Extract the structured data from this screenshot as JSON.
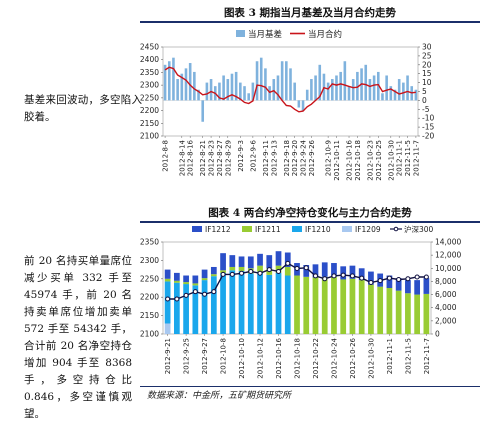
{
  "captions": {
    "fig3": "图表 3 期指当月基差及当月合约走势",
    "fig4": "图表 4 两合约净空持仓变化与主力合约走势"
  },
  "notes": {
    "top": "基差来回波动，多空陷入胶着。",
    "bottom": "前 20 名持买单量席位减少买单 332 手至 45974 手，前 20 名持卖单席位增加卖单 572 手至 54342 手，合计前 20 名净空持仓增加 904 手至 8368 手，多空持仓比 0.846，多空谨慎观望。"
  },
  "source": "数据来源：中金所，五矿期货研究所",
  "colors": {
    "bar_blue_light": "#7fb2dd",
    "line_red": "#c9141a",
    "if1212": "#2b4fc8",
    "if1211": "#99cc33",
    "if1210": "#1aa7ec",
    "if1209": "#a8c8f0",
    "hs300_line": "#101040",
    "rule": "#1b2f6a"
  },
  "chart_data": [
    {
      "type": "bar+line",
      "legend": [
        "当月基差",
        "当月合约"
      ],
      "x": [
        "2012-8-8",
        "2012-8-9",
        "2012-8-10",
        "2012-8-13",
        "2012-8-14",
        "2012-8-15",
        "2012-8-16",
        "2012-8-17",
        "2012-8-20",
        "2012-8-21",
        "2012-8-22",
        "2012-8-23",
        "2012-8-24",
        "2012-8-27",
        "2012-8-28",
        "2012-8-29",
        "2012-8-30",
        "2012-8-31",
        "2012-9-3",
        "2012-9-4",
        "2012-9-5",
        "2012-9-6",
        "2012-9-7",
        "2012-9-10",
        "2012-9-11",
        "2012-9-12",
        "2012-9-13",
        "2012-9-14",
        "2012-9-17",
        "2012-9-18",
        "2012-9-19",
        "2012-9-20",
        "2012-9-21",
        "2012-9-24",
        "2012-9-25",
        "2012-9-26",
        "2012-9-27",
        "2012-9-28",
        "2012-10-8",
        "2012-10-9",
        "2012-10-10",
        "2012-10-11",
        "2012-10-12",
        "2012-10-15",
        "2012-10-16",
        "2012-10-17",
        "2012-10-18",
        "2012-10-19",
        "2012-10-22",
        "2012-10-23",
        "2012-10-24",
        "2012-10-25",
        "2012-10-26",
        "2012-10-29",
        "2012-10-30",
        "2012-10-31",
        "2012-11-1",
        "2012-11-2",
        "2012-11-5",
        "2012-11-6",
        "2012-11-7"
      ],
      "x_tick_labels": [
        "2012-8-8",
        "2012-8-14",
        "2012-8-16",
        "2012-8-21",
        "2012-8-23",
        "2012-8-27",
        "2012-8-29",
        "2012-9-3",
        "2012-9-6",
        "2012-9-11",
        "2012-9-13",
        "2012-9-18",
        "2012-9-20",
        "2012-9-24",
        "2012-9-26",
        "2012-10-9",
        "2012-10-11",
        "2012-10-16",
        "2012-10-18",
        "2012-10-23",
        "2012-10-25",
        "2012-10-30",
        "2012-11-1",
        "2012-11-5",
        "2012-11-7"
      ],
      "series": [
        {
          "name": "当月基差",
          "axis": "right",
          "kind": "bar",
          "values": [
            20,
            22,
            24,
            12,
            15,
            18,
            21,
            16,
            6,
            -12,
            10,
            12,
            8,
            10,
            14,
            12,
            15,
            16,
            10,
            8,
            4,
            10,
            22,
            24,
            18,
            8,
            12,
            14,
            22,
            22,
            18,
            10,
            -4,
            -6,
            6,
            12,
            14,
            20,
            15,
            10,
            12,
            14,
            16,
            22,
            8,
            12,
            16,
            18,
            20,
            12,
            14,
            16,
            4,
            14,
            8,
            6,
            12,
            10,
            14,
            8,
            6
          ]
        },
        {
          "name": "当月合约",
          "axis": "left",
          "kind": "line",
          "values": [
            2360,
            2370,
            2365,
            2340,
            2330,
            2320,
            2300,
            2285,
            2275,
            2262,
            2265,
            2275,
            2268,
            2250,
            2245,
            2255,
            2262,
            2255,
            2245,
            2232,
            2228,
            2238,
            2300,
            2298,
            2292,
            2272,
            2278,
            2262,
            2240,
            2220,
            2218,
            2205,
            2195,
            2198,
            2215,
            2225,
            2240,
            2255,
            2290,
            2285,
            2305,
            2300,
            2305,
            2300,
            2295,
            2290,
            2292,
            2305,
            2302,
            2295,
            2300,
            2302,
            2275,
            2280,
            2285,
            2275,
            2265,
            2270,
            2275,
            2270,
            2272
          ]
        }
      ],
      "ylim_left": [
        2100,
        2450
      ],
      "yticks_left": [
        2100,
        2150,
        2200,
        2250,
        2300,
        2350,
        2400,
        2450
      ],
      "ylim_right": [
        -20,
        30
      ],
      "yticks_right": [
        -20,
        -15,
        -10,
        -5,
        0,
        5,
        10,
        15,
        20,
        25,
        30
      ]
    },
    {
      "type": "stacked-bar+line",
      "legend": [
        "IF1212",
        "IF1211",
        "IF1210",
        "IF1209",
        "沪深300"
      ],
      "x": [
        "2012-9-21",
        "2012-9-24",
        "2012-9-25",
        "2012-9-26",
        "2012-9-27",
        "2012-9-28",
        "2012-10-8",
        "2012-10-9",
        "2012-10-10",
        "2012-10-11",
        "2012-10-12",
        "2012-10-15",
        "2012-10-16",
        "2012-10-17",
        "2012-10-18",
        "2012-10-19",
        "2012-10-22",
        "2012-10-23",
        "2012-10-24",
        "2012-10-25",
        "2012-10-26",
        "2012-10-29",
        "2012-10-30",
        "2012-10-31",
        "2012-11-1",
        "2012-11-2",
        "2012-11-5",
        "2012-11-6",
        "2012-11-7"
      ],
      "x_tick_labels": [
        "2012-9-21",
        "2012-9-25",
        "2012-9-27",
        "2012-10-8",
        "2012-10-10",
        "2012-10-12",
        "2012-10-16",
        "2012-10-18",
        "2012-10-22",
        "2012-10-24",
        "2012-10-26",
        "2012-10-30",
        "2012-11-1",
        "2012-11-5",
        "2012-11-7"
      ],
      "series": [
        {
          "name": "IF1209",
          "axis": "right",
          "kind": "bar",
          "values": [
            1600,
            0,
            0,
            0,
            0,
            0,
            0,
            0,
            0,
            0,
            0,
            0,
            0,
            0,
            0,
            0,
            0,
            0,
            0,
            0,
            0,
            0,
            0,
            0,
            0,
            0,
            0,
            0,
            0
          ]
        },
        {
          "name": "IF1210",
          "axis": "right",
          "kind": "bar",
          "values": [
            6400,
            7800,
            7600,
            7400,
            8200,
            8800,
            9300,
            9700,
            9600,
            9200,
            9500,
            9000,
            9300,
            8900,
            0,
            0,
            0,
            0,
            0,
            0,
            0,
            0,
            0,
            0,
            0,
            0,
            0,
            0,
            0
          ]
        },
        {
          "name": "IF1211",
          "axis": "right",
          "kind": "bar",
          "values": [
            400,
            300,
            300,
            300,
            300,
            300,
            400,
            500,
            600,
            800,
            900,
            1000,
            1100,
            1300,
            8900,
            8700,
            8600,
            8700,
            8700,
            8300,
            8400,
            8200,
            7500,
            7200,
            7000,
            6600,
            6200,
            6000,
            6100
          ]
        },
        {
          "name": "IF1212",
          "axis": "right",
          "kind": "bar",
          "values": [
            1400,
            1200,
            1000,
            1200,
            1300,
            1100,
            2600,
            1800,
            1600,
            1800,
            1800,
            2000,
            2200,
            2200,
            1900,
            1800,
            2000,
            2200,
            2100,
            2000,
            2000,
            1800,
            2000,
            2000,
            1900,
            1900,
            2000,
            2200,
            2400
          ]
        },
        {
          "name": "沪深300",
          "axis": "left",
          "kind": "line",
          "values": [
            2195,
            2195,
            2205,
            2215,
            2208,
            2215,
            2262,
            2262,
            2265,
            2270,
            2265,
            2275,
            2270,
            2292,
            2278,
            2280,
            2258,
            2250,
            2258,
            2260,
            2258,
            2252,
            2240,
            2245,
            2252,
            2248,
            2250,
            2255,
            2255
          ]
        }
      ],
      "ylim_left": [
        2100,
        2350
      ],
      "yticks_left": [
        2100,
        2150,
        2200,
        2250,
        2300,
        2350
      ],
      "ylim_right": [
        0,
        14000
      ],
      "yticks_right": [
        0,
        2000,
        4000,
        6000,
        8000,
        10000,
        12000,
        14000
      ]
    }
  ]
}
